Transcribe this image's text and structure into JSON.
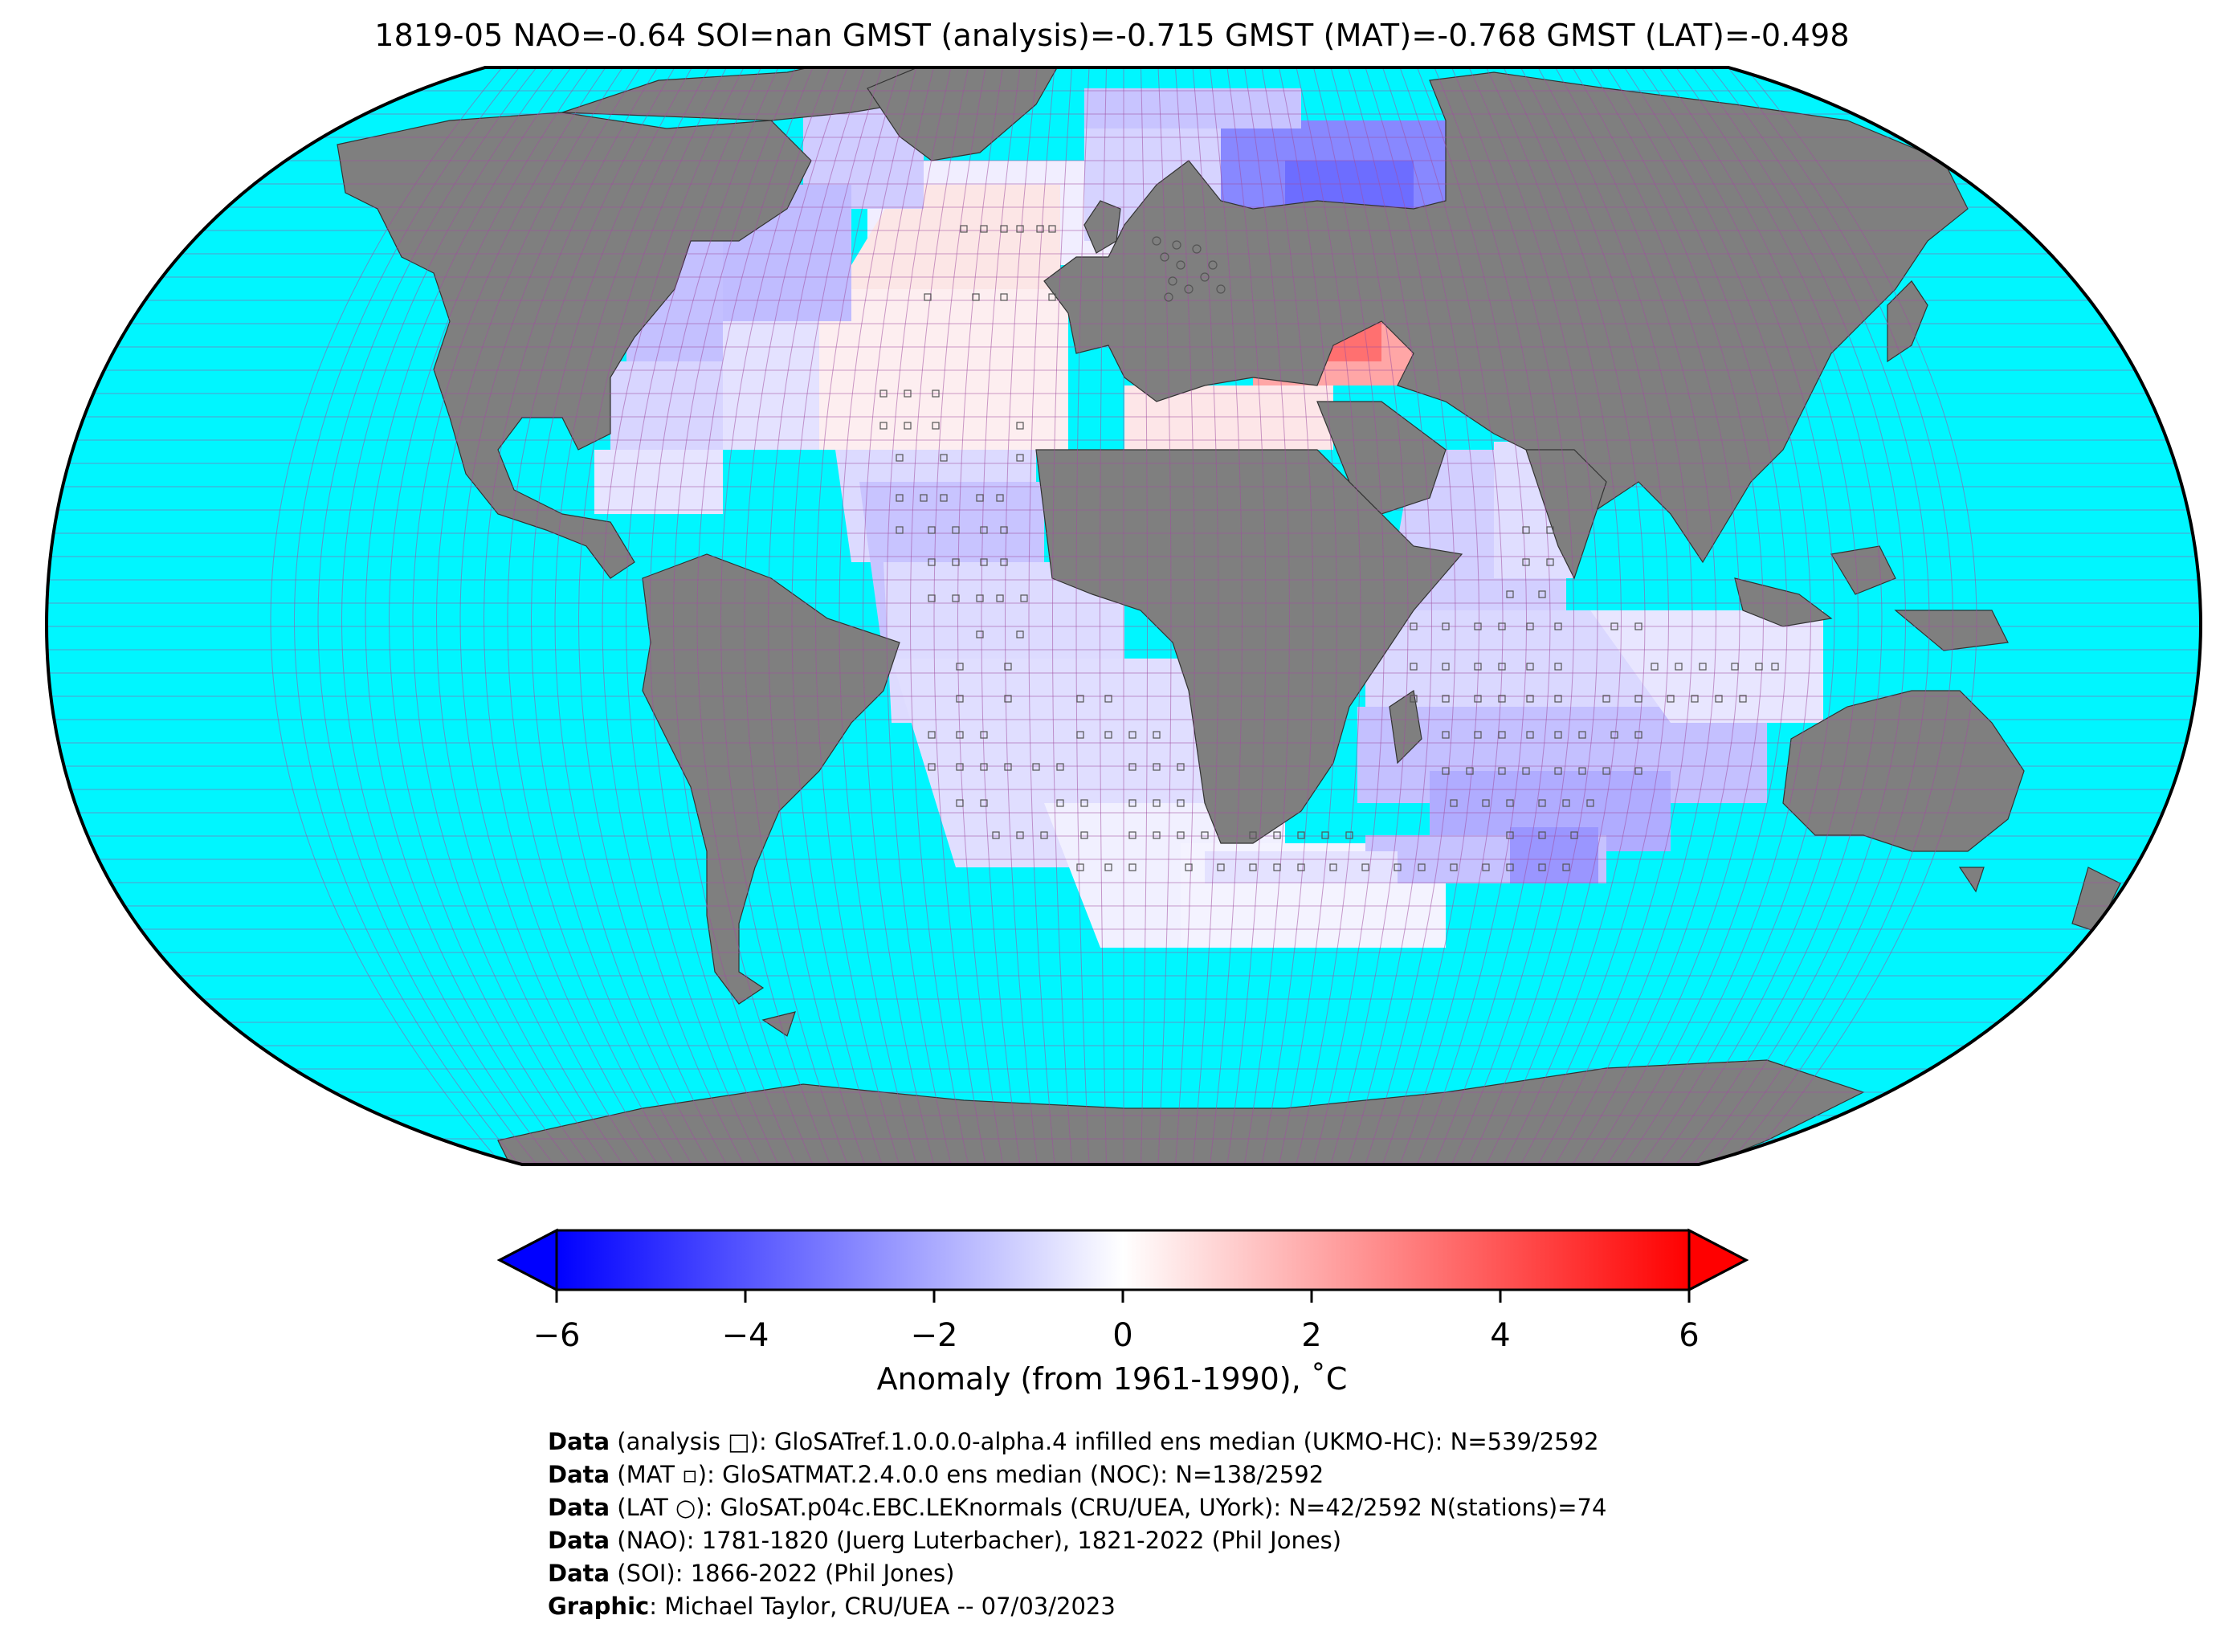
{
  "title": "1819-05 NAO=-0.64 SOI=nan GMST (analysis)=-0.715 GMST (MAT)=-0.768 GMST (LAT)=-0.498",
  "colorbar": {
    "label": "Anomaly (from 1961-1990), ˚C",
    "ticks": [
      "−6",
      "−4",
      "−2",
      "0",
      "2",
      "4",
      "6"
    ],
    "tick_values": [
      -6,
      -4,
      -2,
      0,
      2,
      4,
      6
    ],
    "range": [
      -6,
      6
    ],
    "colormap": [
      "#0000ff",
      "#ffffff",
      "#ff0000"
    ],
    "extend": "both"
  },
  "map_colors": {
    "ocean": "#00f6ff",
    "land": "#7f7f7f",
    "graticule": "#a04fa0",
    "anomaly_negative": "#0000ff",
    "anomaly_positive": "#ff0000"
  },
  "credits": [
    {
      "head": "Data",
      "text": " (analysis □): GloSATref.1.0.0.0-alpha.4 infilled ens median (UKMO-HC): N=539/2592"
    },
    {
      "head": "Data",
      "text": " (MAT ▫): GloSATMAT.2.4.0.0 ens median (NOC): N=138/2592"
    },
    {
      "head": "Data",
      "text": " (LAT ○): GloSAT.p04c.EBC.LEKnormals (CRU/UEA, UYork): N=42/2592 N(stations)=74"
    },
    {
      "head": "Data",
      "text": " (NAO): 1781-1820 (Juerg Luterbacher), 1821-2022 (Phil Jones)"
    },
    {
      "head": "Data",
      "text": " (SOI): 1866-2022 (Phil Jones)"
    },
    {
      "head": "Graphic",
      "text": ": Michael Taylor, CRU/UEA -- 07/03/2023"
    }
  ]
}
